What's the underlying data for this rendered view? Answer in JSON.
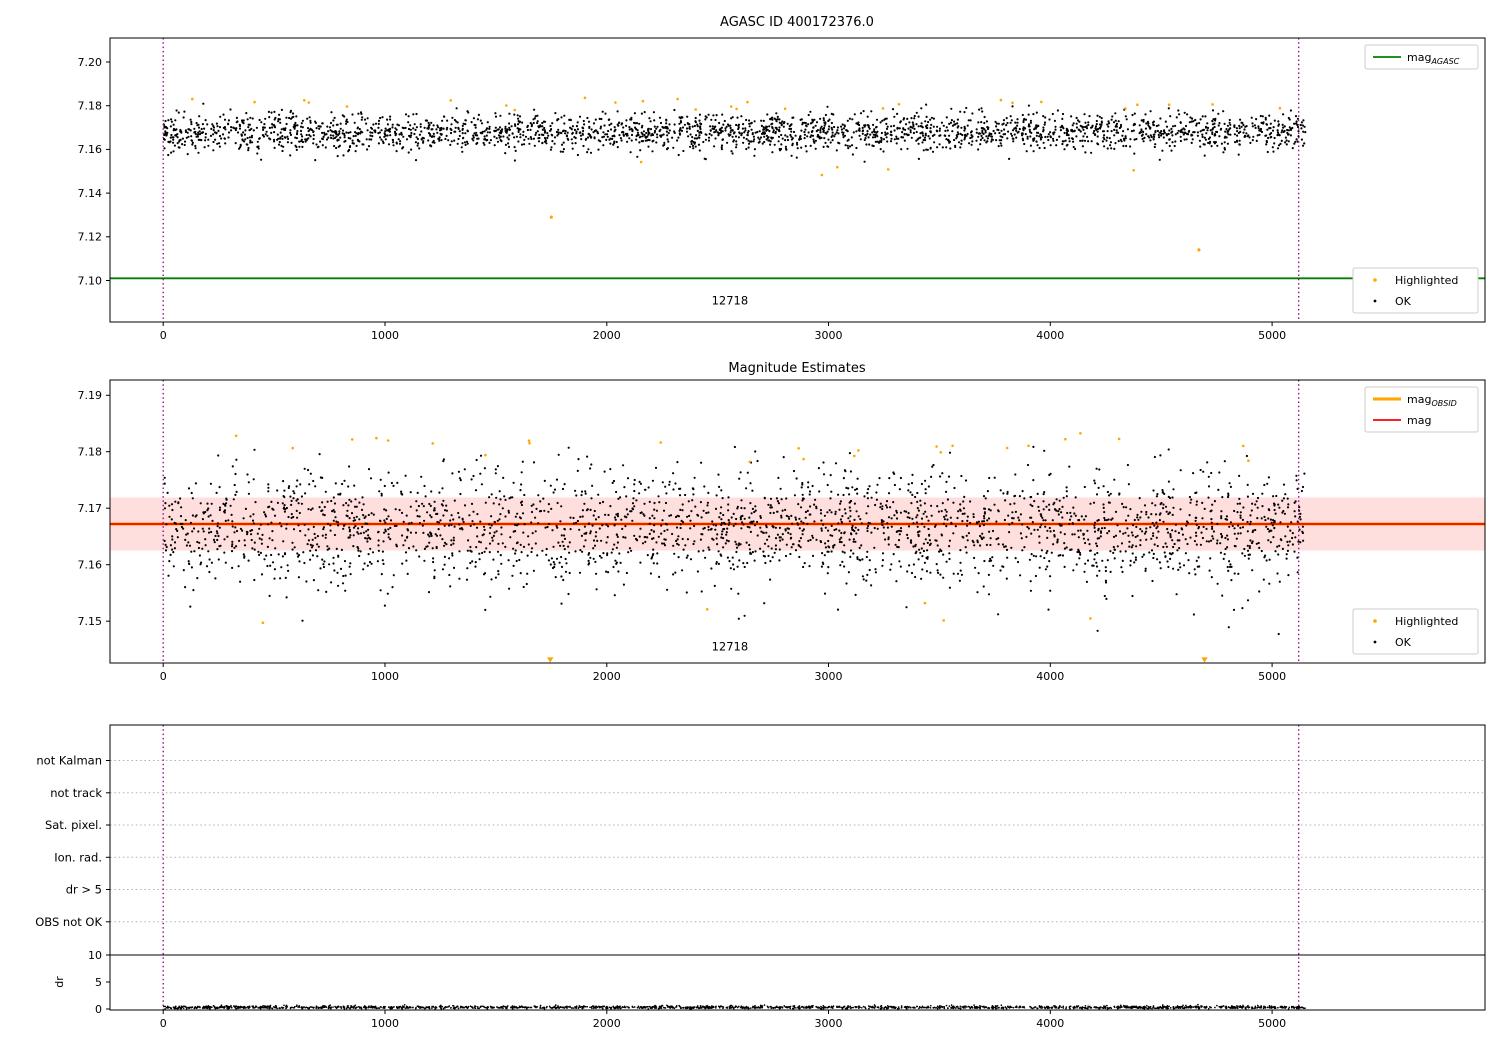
{
  "chart_data": [
    {
      "id": "agasc-panel",
      "type": "scatter",
      "title": "AGASC ID 400172376.0",
      "xlim": [
        -240,
        5960
      ],
      "ylim": [
        7.081,
        7.211
      ],
      "xticks": [
        {
          "v": 0,
          "label": "0"
        },
        {
          "v": 1000,
          "label": "1000"
        },
        {
          "v": 2000,
          "label": "2000"
        },
        {
          "v": 3000,
          "label": "3000"
        },
        {
          "v": 4000,
          "label": "4000"
        },
        {
          "v": 5000,
          "label": "5000"
        }
      ],
      "yticks": [
        {
          "v": 7.1,
          "label": "7.10"
        },
        {
          "v": 7.12,
          "label": "7.12"
        },
        {
          "v": 7.14,
          "label": "7.14"
        },
        {
          "v": 7.16,
          "label": "7.16"
        },
        {
          "v": 7.18,
          "label": "7.18"
        },
        {
          "v": 7.2,
          "label": "7.20"
        }
      ],
      "annotation": {
        "text": "12718",
        "x": 2555,
        "y": 7.089
      },
      "vlines": {
        "xs": [
          0,
          5120
        ],
        "color": "#8B008B"
      },
      "hlines": [
        {
          "name": "mag-agasc-line",
          "y": 7.101,
          "color": "#008000",
          "width": 1.8
        }
      ],
      "series": [
        {
          "name": "OK",
          "color": "#000000",
          "marker": "dot",
          "n": 2600,
          "x_range": [
            0,
            5150
          ],
          "y_mean": 7.168,
          "y_std": 0.0042,
          "y_clip": [
            7.1535,
            7.1815
          ],
          "seed": 7
        },
        {
          "name": "Highlighted",
          "color": "#FFA500",
          "marker": "dot",
          "n": 32,
          "x_range": [
            0,
            5150
          ],
          "bands": [
            [
              7.178,
              7.184
            ],
            [
              7.147,
              7.156
            ]
          ],
          "top_fraction": 0.75,
          "seed": 11
        }
      ],
      "outliers": [
        {
          "x": 1750,
          "y": 7.129,
          "color": "#FFA500"
        },
        {
          "x": 4670,
          "y": 7.114,
          "color": "#FFA500"
        }
      ],
      "legend_top": [
        {
          "type": "line",
          "color": "#008000",
          "width": 1.8,
          "label": "mag",
          "sub": "AGASC"
        }
      ],
      "legend_bottom": [
        {
          "type": "dot",
          "color": "#FFA500",
          "label": "Highlighted"
        },
        {
          "type": "dot",
          "color": "#000000",
          "label": "OK"
        }
      ]
    },
    {
      "id": "magnitude-estimates-panel",
      "type": "scatter",
      "title": "Magnitude Estimates",
      "xlim": [
        -240,
        5960
      ],
      "ylim": [
        7.1426,
        7.1927
      ],
      "xticks": [
        {
          "v": 0,
          "label": "0"
        },
        {
          "v": 1000,
          "label": "1000"
        },
        {
          "v": 2000,
          "label": "2000"
        },
        {
          "v": 3000,
          "label": "3000"
        },
        {
          "v": 4000,
          "label": "4000"
        },
        {
          "v": 5000,
          "label": "5000"
        }
      ],
      "yticks": [
        {
          "v": 7.15,
          "label": "7.15"
        },
        {
          "v": 7.16,
          "label": "7.16"
        },
        {
          "v": 7.17,
          "label": "7.17"
        },
        {
          "v": 7.18,
          "label": "7.18"
        },
        {
          "v": 7.19,
          "label": "7.19"
        }
      ],
      "annotation": {
        "text": "12718",
        "x": 2555,
        "y": 7.1448
      },
      "vlines": {
        "xs": [
          0,
          5120
        ],
        "color": "#8B008B"
      },
      "band": {
        "y_low": 7.1625,
        "y_high": 7.1719,
        "color": "rgba(255,0,0,0.13)"
      },
      "hlines": [
        {
          "name": "mag-obsid-line",
          "y": 7.1672,
          "color": "#FFA500",
          "width": 3
        },
        {
          "name": "mag-line",
          "y": 7.1672,
          "color": "#FF0000",
          "width": 1.8
        }
      ],
      "series": [
        {
          "name": "OK",
          "color": "#000000",
          "marker": "dot",
          "n": 2600,
          "x_range": [
            0,
            5150
          ],
          "y_mean": 7.1665,
          "y_std": 0.005,
          "y_clip": [
            7.147,
            7.181
          ],
          "seed": 13
        },
        {
          "name": "Highlighted",
          "color": "#FFA500",
          "marker": "dot",
          "n": 30,
          "x_range": [
            0,
            5150
          ],
          "bands": [
            [
              7.178,
              7.1835
            ],
            [
              7.148,
              7.155
            ]
          ],
          "top_fraction": 0.75,
          "seed": 17
        }
      ],
      "clipped_markers": [
        {
          "x": 1745,
          "color": "#FFA500"
        },
        {
          "x": 4695,
          "color": "#FFA500"
        }
      ],
      "legend_top": [
        {
          "type": "line",
          "color": "#FFA500",
          "width": 3,
          "label": "mag",
          "sub": "OBSID"
        },
        {
          "type": "line",
          "color": "#FF0000",
          "width": 1.8,
          "label": "mag"
        }
      ],
      "legend_bottom": [
        {
          "type": "dot",
          "color": "#FFA500",
          "label": "Highlighted"
        },
        {
          "type": "dot",
          "color": "#000000",
          "label": "OK"
        }
      ]
    },
    {
      "id": "flags-panel",
      "type": "flags",
      "xlim": [
        -240,
        5960
      ],
      "xticks": [
        {
          "v": 0,
          "label": "0"
        },
        {
          "v": 1000,
          "label": "1000"
        },
        {
          "v": 2000,
          "label": "2000"
        },
        {
          "v": 3000,
          "label": "3000"
        },
        {
          "v": 4000,
          "label": "4000"
        },
        {
          "v": 5000,
          "label": "5000"
        }
      ],
      "categories": [
        "not Kalman",
        "not track",
        "Sat. pixel.",
        "Ion. rad.",
        "dr > 5",
        "OBS not OK"
      ],
      "vlines": {
        "xs": [
          0,
          5120
        ],
        "color": "#8B008B"
      },
      "dr": {
        "label": "dr",
        "ticks": [
          {
            "v": 0,
            "label": "0"
          },
          {
            "v": 5,
            "label": "5"
          },
          {
            "v": 10,
            "label": "10"
          }
        ],
        "hline": 10,
        "series": {
          "name": "dr",
          "color": "#000000",
          "n": 1900,
          "x_range": [
            0,
            5150
          ],
          "y_mean": 0.3,
          "y_std": 0.15,
          "y_clip": [
            0.02,
            0.9
          ],
          "seed": 23
        }
      }
    }
  ]
}
